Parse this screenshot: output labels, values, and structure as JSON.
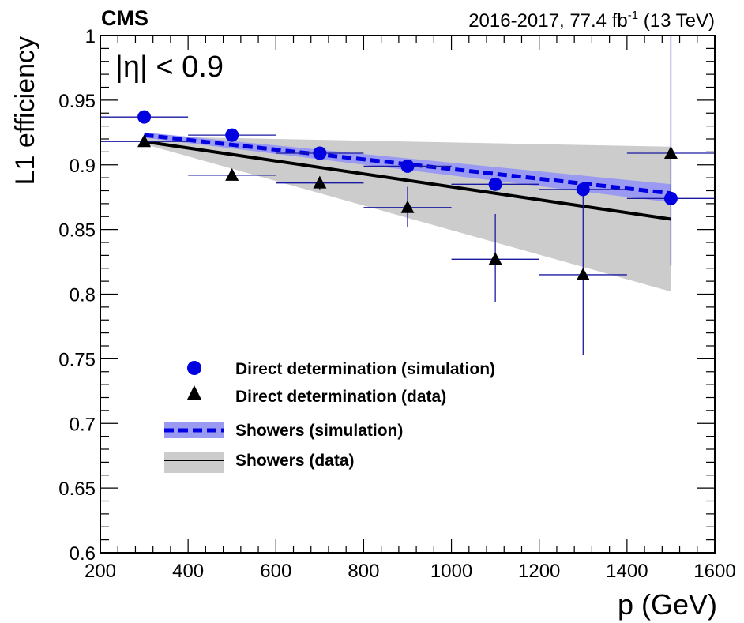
{
  "header": {
    "experiment": "CMS",
    "lumi_prefix": "2016-2017, 77.4 fb",
    "lumi_exp": "-1",
    "lumi_suffix": " (13 TeV)"
  },
  "annotation": {
    "eta_label": "|η| < 0.9"
  },
  "legend": {
    "items": [
      {
        "label": "Direct determination (simulation)"
      },
      {
        "label": "Direct determination (data)"
      },
      {
        "label": "Showers (simulation)"
      },
      {
        "label": "Showers (data)"
      }
    ]
  },
  "colors": {
    "simulation": "#0000e0",
    "data": "#000000",
    "sim_band": "#9a9af2",
    "data_band": "#cccccc",
    "error_bar": "#1a1aa0"
  },
  "chart_data": {
    "type": "scatter",
    "xlabel": "p (GeV)",
    "ylabel": "L1 efficiency",
    "xlim": [
      200,
      1600
    ],
    "ylim": [
      0.6,
      1.0
    ],
    "x_ticks": [
      200,
      400,
      600,
      800,
      1000,
      1200,
      1400,
      1600
    ],
    "x_tick_labels": [
      "200",
      "400",
      "600",
      "800",
      "1000",
      "1200",
      "1400",
      "1600"
    ],
    "y_ticks": [
      0.6,
      0.65,
      0.7,
      0.75,
      0.8,
      0.85,
      0.9,
      0.95,
      1.0
    ],
    "y_tick_labels": [
      "0.6",
      "0.65",
      "0.7",
      "0.75",
      "0.8",
      "0.85",
      "0.9",
      "0.95",
      "1"
    ],
    "grid": false,
    "legend_position": "center-left",
    "series": [
      {
        "name": "Direct determination (simulation)",
        "marker": "circle",
        "points": [
          {
            "x": 300,
            "y": 0.937,
            "xerr": 100,
            "yerr_low": 0.0,
            "yerr_high": 0.0
          },
          {
            "x": 500,
            "y": 0.923,
            "xerr": 100,
            "yerr_low": 0.0,
            "yerr_high": 0.0
          },
          {
            "x": 700,
            "y": 0.909,
            "xerr": 100,
            "yerr_low": 0.0,
            "yerr_high": 0.0
          },
          {
            "x": 900,
            "y": 0.899,
            "xerr": 100,
            "yerr_low": 0.0,
            "yerr_high": 0.0
          },
          {
            "x": 1100,
            "y": 0.885,
            "xerr": 100,
            "yerr_low": 0.0,
            "yerr_high": 0.0
          },
          {
            "x": 1300,
            "y": 0.881,
            "xerr": 100,
            "yerr_low": 0.0,
            "yerr_high": 0.0
          },
          {
            "x": 1500,
            "y": 0.874,
            "xerr": 100,
            "yerr_low": 0.0,
            "yerr_high": 0.0
          }
        ]
      },
      {
        "name": "Direct determination (data)",
        "marker": "triangle",
        "points": [
          {
            "x": 300,
            "y": 0.918,
            "xerr": 100,
            "yerr_low": 0.0,
            "yerr_high": 0.0
          },
          {
            "x": 500,
            "y": 0.892,
            "xerr": 100,
            "yerr_low": 0.0,
            "yerr_high": 0.0
          },
          {
            "x": 700,
            "y": 0.886,
            "xerr": 100,
            "yerr_low": 0.005,
            "yerr_high": 0.005
          },
          {
            "x": 900,
            "y": 0.867,
            "xerr": 100,
            "yerr_low": 0.015,
            "yerr_high": 0.016
          },
          {
            "x": 1100,
            "y": 0.827,
            "xerr": 100,
            "yerr_low": 0.033,
            "yerr_high": 0.035
          },
          {
            "x": 1300,
            "y": 0.815,
            "xerr": 100,
            "yerr_low": 0.062,
            "yerr_high": 0.066
          },
          {
            "x": 1500,
            "y": 0.909,
            "xerr": 100,
            "yerr_low": 0.087,
            "yerr_high": 0.091
          }
        ]
      },
      {
        "name": "Showers (simulation)",
        "style": "dashed-line-with-band",
        "line": [
          {
            "x": 300,
            "y": 0.923
          },
          {
            "x": 1500,
            "y": 0.878
          }
        ],
        "band": [
          {
            "x": 300,
            "low": 0.921,
            "high": 0.925
          },
          {
            "x": 1500,
            "low": 0.871,
            "high": 0.885
          }
        ]
      },
      {
        "name": "Showers (data)",
        "style": "solid-line-with-band",
        "line": [
          {
            "x": 300,
            "y": 0.918
          },
          {
            "x": 1500,
            "y": 0.858
          }
        ],
        "band": [
          {
            "x": 300,
            "low": 0.916,
            "high": 0.922
          },
          {
            "x": 1500,
            "low": 0.802,
            "high": 0.914
          }
        ]
      }
    ]
  }
}
